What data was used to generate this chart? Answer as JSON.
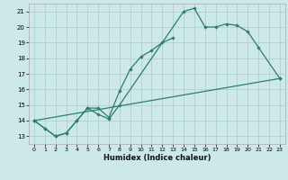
{
  "xlabel": "Humidex (Indice chaleur)",
  "bg_color": "#cce8e8",
  "grid_color": "#aacccc",
  "line_color": "#2e7d6e",
  "xlim": [
    -0.5,
    23.5
  ],
  "ylim": [
    12.5,
    21.5
  ],
  "xticks": [
    0,
    1,
    2,
    3,
    4,
    5,
    6,
    7,
    8,
    9,
    10,
    11,
    12,
    13,
    14,
    15,
    16,
    17,
    18,
    19,
    20,
    21,
    22,
    23
  ],
  "yticks": [
    13,
    14,
    15,
    16,
    17,
    18,
    19,
    20,
    21
  ],
  "line1_x": [
    0,
    1,
    2,
    3,
    4,
    5,
    6,
    7,
    8,
    9,
    10,
    11,
    12,
    13
  ],
  "line1_y": [
    14.0,
    13.5,
    13.0,
    13.2,
    14.0,
    14.8,
    14.8,
    14.2,
    15.9,
    17.3,
    18.1,
    18.5,
    19.0,
    19.3
  ],
  "line2_x": [
    0,
    1,
    2,
    3,
    4,
    5,
    6,
    7,
    8,
    14,
    15,
    16,
    17,
    18,
    19,
    20,
    21,
    23
  ],
  "line2_y": [
    14.0,
    13.5,
    13.0,
    13.2,
    14.0,
    14.8,
    14.4,
    14.1,
    15.0,
    21.0,
    21.2,
    20.0,
    20.0,
    20.2,
    20.1,
    19.7,
    18.7,
    16.7
  ],
  "line3_x": [
    0,
    23
  ],
  "line3_y": [
    14.0,
    16.7
  ]
}
